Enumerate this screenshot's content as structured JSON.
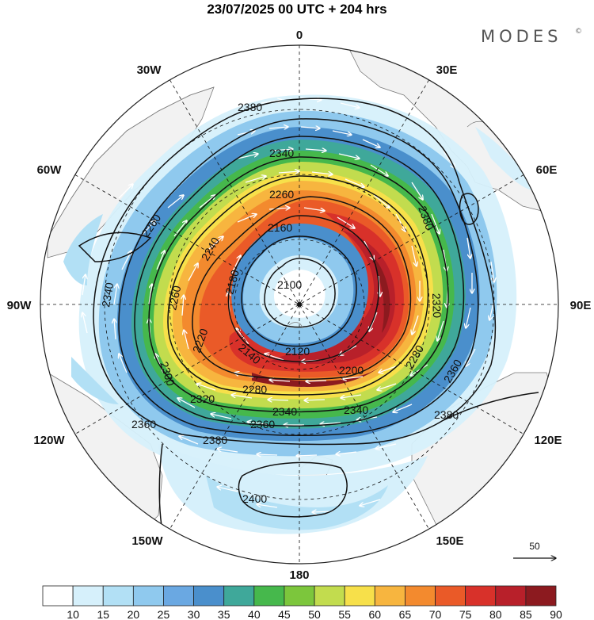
{
  "title": "23/07/2025  00 UTC  + 204 hrs",
  "brand": "MODES",
  "brand_mark": "©",
  "meridian_labels": {
    "m0": "0",
    "m30e": "30E",
    "m60e": "60E",
    "m90e": "90E",
    "m120e": "120E",
    "m150e": "150E",
    "m180": "180",
    "m150w": "150W",
    "m120w": "120W",
    "m90w": "90W",
    "m60w": "60W",
    "m30w": "30W"
  },
  "contour_labels": {
    "c2380a": "2380",
    "c2380b": "2380",
    "c2380c": "2380",
    "c2380d": "2380",
    "c2360a": "2360",
    "c2360b": "2360",
    "c2360c": "2360",
    "c2340a": "2340",
    "c2340b": "2340",
    "c2340c": "2340",
    "c2340d": "2340",
    "c2320a": "2320",
    "c2320b": "2320",
    "c2300a": "2300",
    "c2280a": "2280",
    "c2280b": "2280",
    "c2260a": "2260",
    "c2260b": "2260",
    "c2260c": "2260",
    "c2240a": "2240",
    "c2220a": "2220",
    "c2200a": "2200",
    "c2180a": "2180",
    "c2160a": "2160",
    "c2140a": "2140",
    "c2120a": "2120",
    "c2100a": "2100",
    "c2400a": "2400"
  },
  "reference_vector": {
    "label": "50"
  },
  "colorbar": {
    "ticks": [
      "10",
      "15",
      "20",
      "25",
      "30",
      "35",
      "40",
      "45",
      "50",
      "55",
      "60",
      "65",
      "70",
      "75",
      "80",
      "85",
      "90"
    ],
    "colors": [
      "#ffffff",
      "#d6f0fb",
      "#b2e0f5",
      "#8fc9ee",
      "#6aa8e2",
      "#4a8fcc",
      "#3fa89a",
      "#46b84c",
      "#7cc63c",
      "#c2dc4e",
      "#f7e04a",
      "#f7b53f",
      "#f38a2e",
      "#ea5a28",
      "#d8312a",
      "#b8202a",
      "#8c1a1f"
    ]
  }
}
